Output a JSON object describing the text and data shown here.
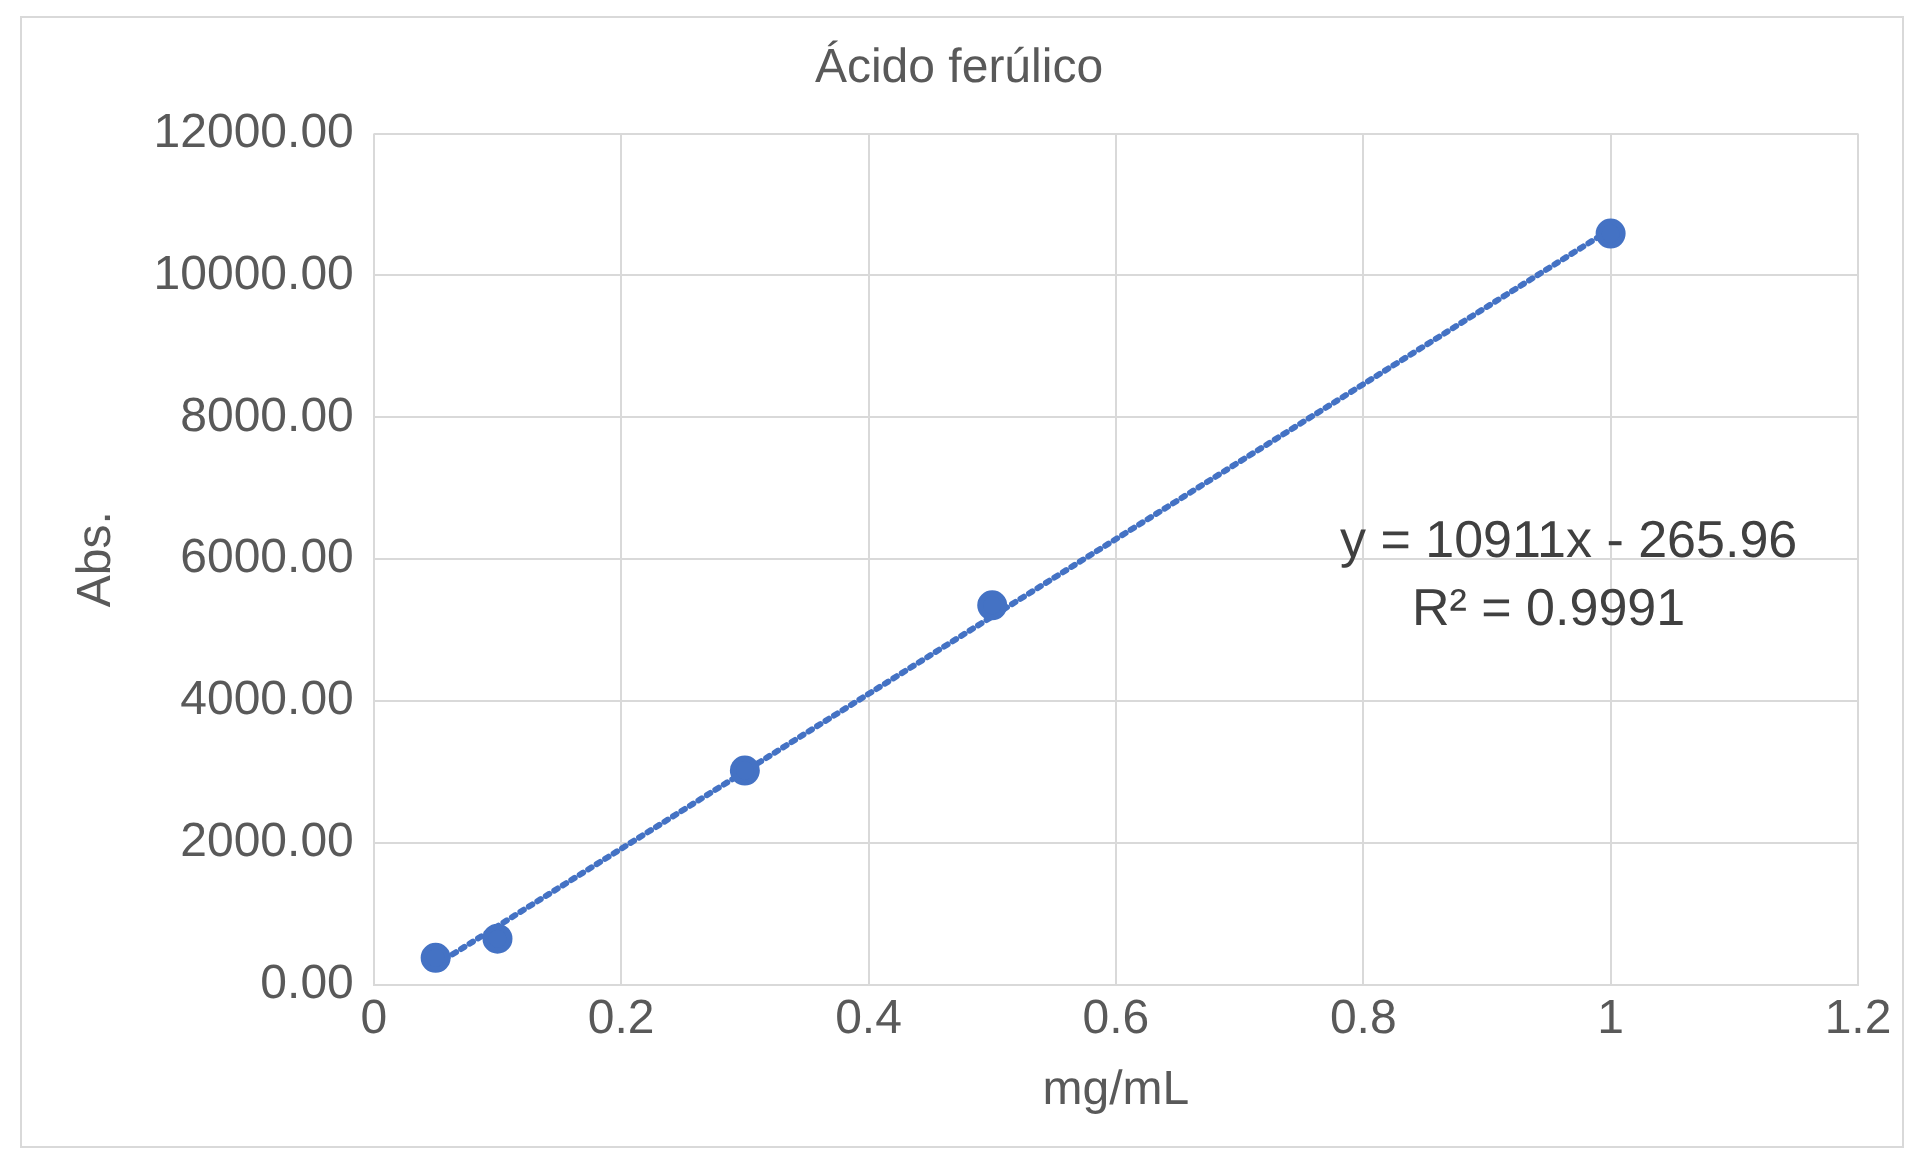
{
  "chart_data": {
    "type": "scatter",
    "title": "Ácido ferúlico",
    "xlabel": "mg/mL",
    "ylabel": "Abs.",
    "x": [
      0.05,
      0.1,
      0.3,
      0.5,
      1
    ],
    "series": [
      {
        "type": "scatter",
        "color": "#4472c4",
        "values": [
          380,
          650,
          3020,
          5350,
          10590
        ],
        "marker": "circle"
      },
      {
        "type": "line",
        "color": "#4472c4",
        "x": [
          0.05,
          1
        ],
        "values": [
          280,
          10650
        ],
        "line_style": "dotted",
        "marker": "none"
      }
    ],
    "annotations": [
      "y = 10911x - 265.96",
      "R² = 0.9991"
    ],
    "xlim": [
      0,
      1.2
    ],
    "xticks": [
      0,
      0.2,
      0.4,
      0.6,
      0.8,
      1,
      1.2
    ],
    "ylim": [
      0,
      12000
    ],
    "yticks": [
      {
        "value": 0,
        "label": "0.00"
      },
      {
        "value": 2000,
        "label": "2000.00"
      },
      {
        "value": 4000,
        "label": "4000.00"
      },
      {
        "value": 6000,
        "label": "6000.00"
      },
      {
        "value": 8000,
        "label": "8000.00"
      },
      {
        "value": 10000,
        "label": "10000.00"
      },
      {
        "value": 12000,
        "label": "12000.00"
      }
    ],
    "grid": true,
    "legend": false
  }
}
